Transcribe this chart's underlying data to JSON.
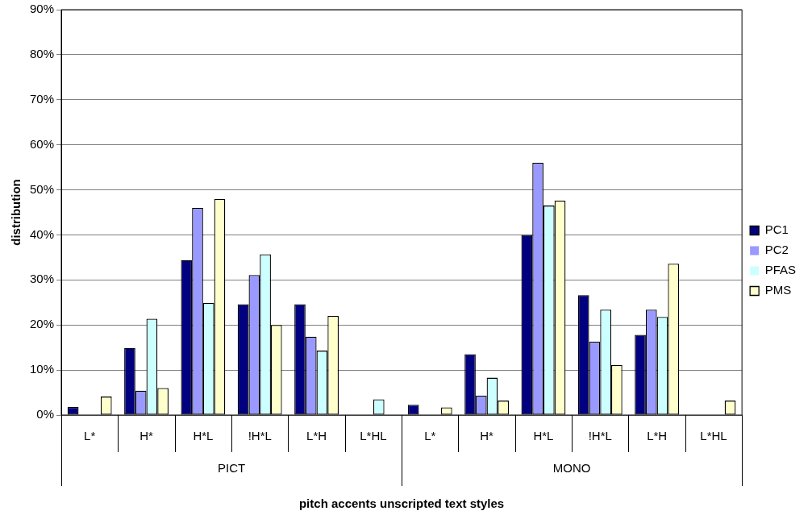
{
  "chart_data": {
    "type": "bar",
    "xlabel": "pitch accents unscripted text styles",
    "ylabel": "distribution",
    "categories": [
      "L*",
      "H*",
      "H*L",
      "!H*L",
      "L*H",
      "L*HL",
      "L*",
      "H*",
      "H*L",
      "!H*L",
      "L*H",
      "L*HL"
    ],
    "series": [
      {
        "name": "PC1",
        "color": "#000080",
        "values": [
          1.8,
          14.9,
          34.4,
          24.6,
          24.6,
          0,
          2.3,
          13.5,
          40,
          26.6,
          17.8,
          0
        ]
      },
      {
        "name": "PC2",
        "color": "#9999ff",
        "values": [
          0,
          5.4,
          46,
          31.1,
          17.4,
          0,
          0,
          4.3,
          56,
          16.3,
          23.4,
          0
        ]
      },
      {
        "name": "PFAS",
        "color": "#ccffff",
        "values": [
          0,
          21.4,
          24.9,
          35.7,
          14.3,
          3.5,
          0,
          8.3,
          46.5,
          23.4,
          21.8,
          0
        ]
      },
      {
        "name": "PMS",
        "color": "#ffffcc",
        "values": [
          4.1,
          6.0,
          48,
          20.0,
          22.0,
          0,
          1.7,
          3.2,
          47.6,
          11.1,
          33.6,
          3.2
        ]
      }
    ],
    "annotations": [
      "PICT",
      "MONO"
    ],
    "ylim": [
      0,
      90
    ],
    "yticks": [
      {
        "value": 0,
        "label": "0%"
      },
      {
        "value": 10,
        "label": "10%"
      },
      {
        "value": 20,
        "label": "20%"
      },
      {
        "value": 30,
        "label": "30%"
      },
      {
        "value": 40,
        "label": "40%"
      },
      {
        "value": 50,
        "label": "50%"
      },
      {
        "value": 60,
        "label": "60%"
      },
      {
        "value": 70,
        "label": "70%"
      },
      {
        "value": 80,
        "label": "80%"
      },
      {
        "value": 90,
        "label": "90%"
      }
    ],
    "grid": "y",
    "legend": "right"
  }
}
